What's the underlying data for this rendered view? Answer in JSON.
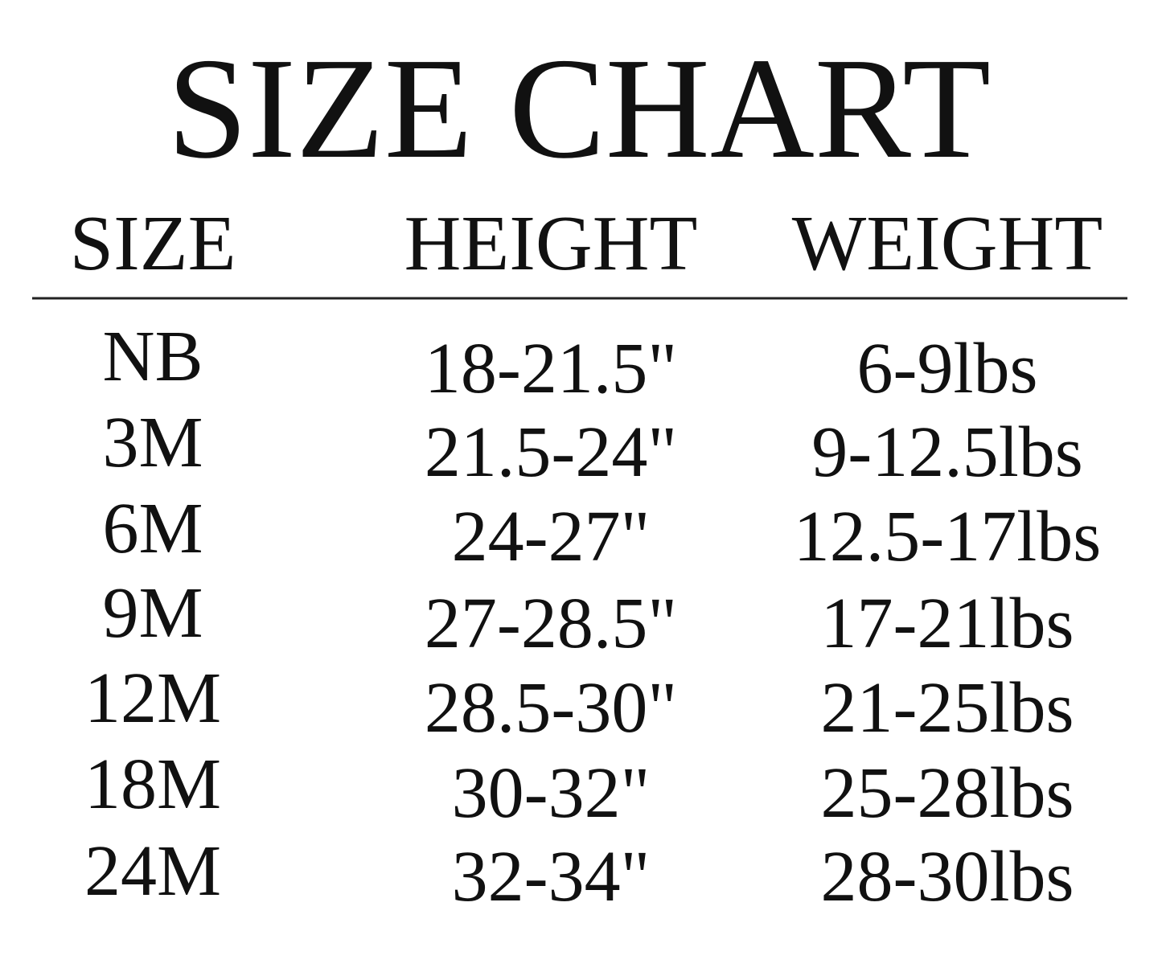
{
  "header": {
    "title": "SIZE CHART"
  },
  "table": {
    "columns": [
      "SIZE",
      "HEIGHT",
      "WEIGHT"
    ],
    "rows": [
      [
        "NB",
        "18-21.5\"",
        "6-9lbs"
      ],
      [
        "3M",
        "21.5-24\"",
        "9-12.5lbs"
      ],
      [
        "6M",
        "24-27\"",
        "12.5-17lbs"
      ],
      [
        "9M",
        "27-28.5\"",
        "17-21lbs"
      ],
      [
        "12M",
        "28.5-30\"",
        "21-25lbs"
      ],
      [
        "18M",
        "30-32\"",
        "25-28lbs"
      ],
      [
        "24M",
        "32-34\"",
        "28-30lbs"
      ]
    ]
  }
}
